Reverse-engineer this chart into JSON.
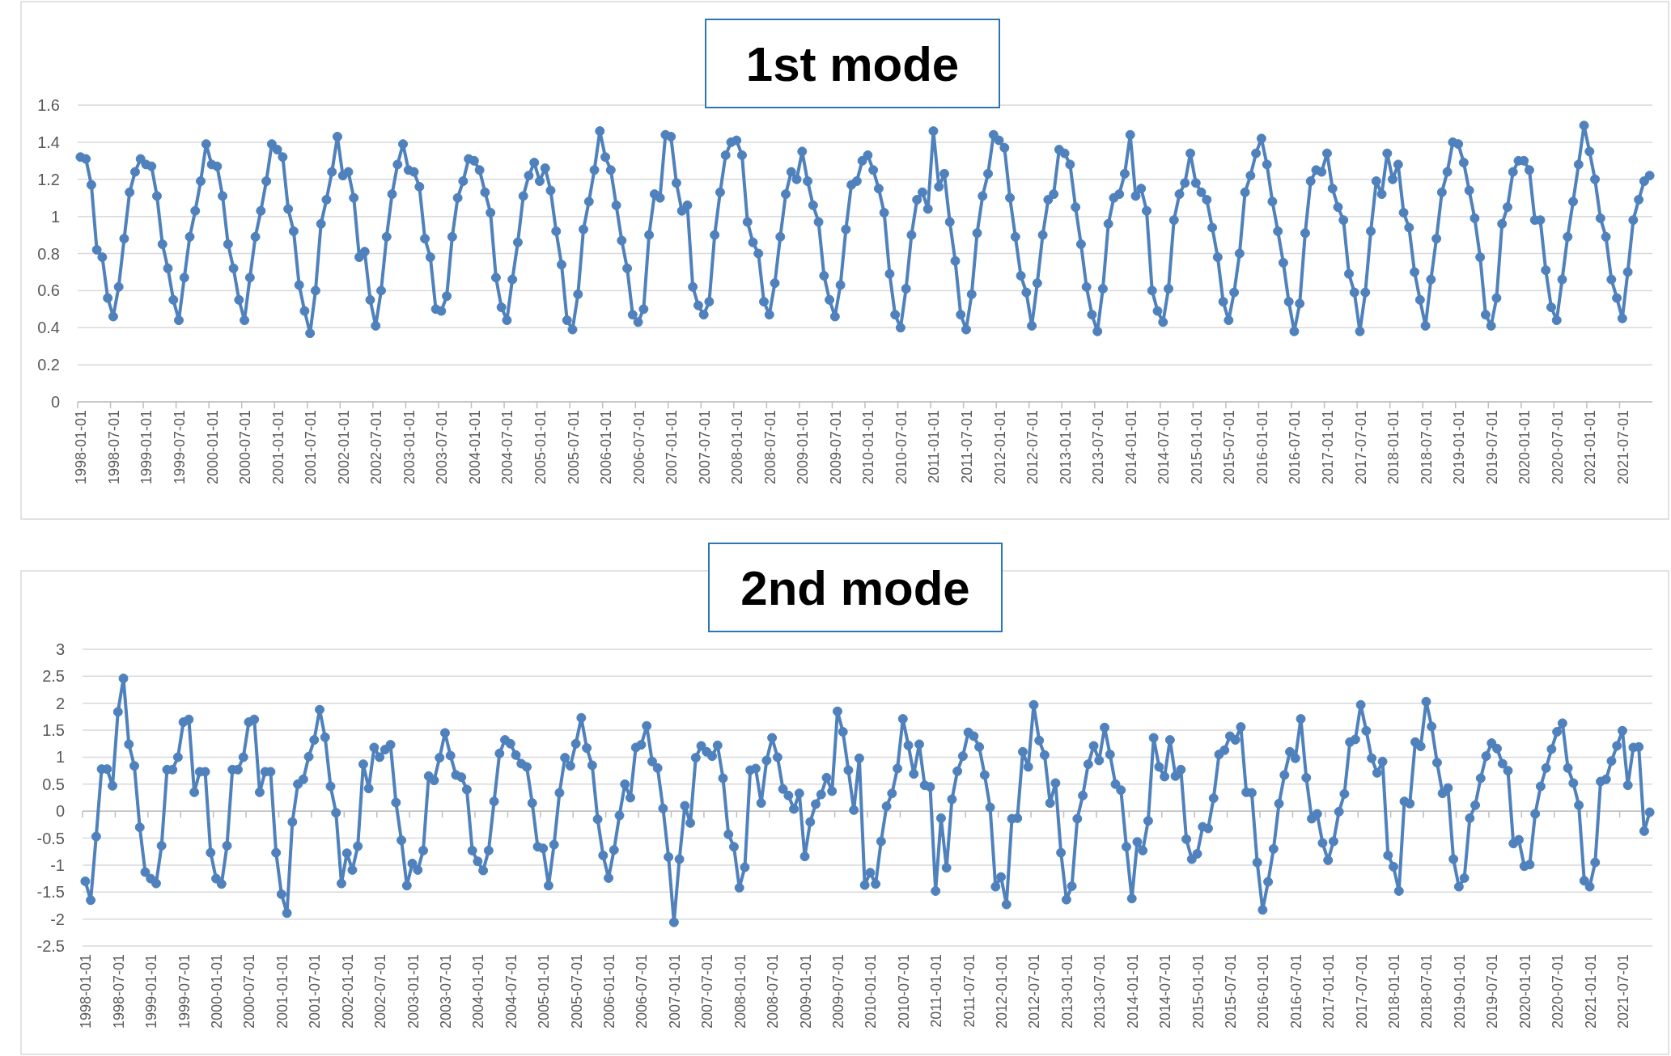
{
  "chart_data": [
    {
      "type": "line",
      "title": "1st mode",
      "grid": "y",
      "marker": "circle",
      "ylim": [
        0,
        1.6
      ],
      "yticks": [
        0,
        0.2,
        0.4,
        0.6,
        0.8,
        1,
        1.2,
        1.4,
        1.6
      ],
      "categories": [
        "1998-01-01",
        null,
        null,
        null,
        null,
        null,
        "1998-07-01",
        null,
        null,
        null,
        null,
        null,
        "1999-01-01",
        null,
        null,
        null,
        null,
        null,
        "1999-07-01",
        null,
        null,
        null,
        null,
        null,
        "2000-01-01",
        null,
        null,
        null,
        null,
        null,
        "2000-07-01",
        null,
        null,
        null,
        null,
        null,
        "2001-01-01",
        null,
        null,
        null,
        null,
        null,
        "2001-07-01",
        null,
        null,
        null,
        null,
        null,
        "2002-01-01",
        null,
        null,
        null,
        null,
        null,
        "2002-07-01",
        null,
        null,
        null,
        null,
        null,
        "2003-01-01",
        null,
        null,
        null,
        null,
        null,
        "2003-07-01",
        null,
        null,
        null,
        null,
        null,
        "2004-01-01",
        null,
        null,
        null,
        null,
        null,
        "2004-07-01",
        null,
        null,
        null,
        null,
        null,
        "2005-01-01",
        null,
        null,
        null,
        null,
        null,
        "2005-07-01",
        null,
        null,
        null,
        null,
        null,
        "2006-01-01",
        null,
        null,
        null,
        null,
        null,
        "2006-07-01",
        null,
        null,
        null,
        null,
        null,
        "2007-01-01",
        null,
        null,
        null,
        null,
        null,
        "2007-07-01",
        null,
        null,
        null,
        null,
        null,
        "2008-01-01",
        null,
        null,
        null,
        null,
        null,
        "2008-07-01",
        null,
        null,
        null,
        null,
        null,
        "2009-01-01",
        null,
        null,
        null,
        null,
        null,
        "2009-07-01",
        null,
        null,
        null,
        null,
        null,
        "2010-01-01",
        null,
        null,
        null,
        null,
        null,
        "2010-07-01",
        null,
        null,
        null,
        null,
        null,
        "2011-01-01",
        null,
        null,
        null,
        null,
        null,
        "2011-07-01",
        null,
        null,
        null,
        null,
        null,
        "2012-01-01",
        null,
        null,
        null,
        null,
        null,
        "2012-07-01",
        null,
        null,
        null,
        null,
        null,
        "2013-01-01",
        null,
        null,
        null,
        null,
        null,
        "2013-07-01",
        null,
        null,
        null,
        null,
        null,
        "2014-01-01",
        null,
        null,
        null,
        null,
        null,
        "2014-07-01",
        null,
        null,
        null,
        null,
        null,
        "2015-01-01",
        null,
        null,
        null,
        null,
        null,
        "2015-07-01",
        null,
        null,
        null,
        null,
        null,
        "2016-01-01",
        null,
        null,
        null,
        null,
        null,
        "2016-07-01",
        null,
        null,
        null,
        null,
        null,
        "2017-01-01",
        null,
        null,
        null,
        null,
        null,
        "2017-07-01",
        null,
        null,
        null,
        null,
        null,
        "2018-01-01",
        null,
        null,
        null,
        null,
        null,
        "2018-07-01",
        null,
        null,
        null,
        null,
        null,
        "2019-01-01",
        null,
        null,
        null,
        null,
        null,
        "2019-07-01",
        null,
        null,
        null,
        null,
        null,
        "2020-01-01",
        null,
        null,
        null,
        null,
        null,
        "2020-07-01",
        null,
        null,
        null,
        null,
        null,
        "2021-01-01",
        null,
        null,
        null,
        null,
        null,
        "2021-07-01",
        null,
        null,
        null,
        null,
        null
      ],
      "series": [
        {
          "color": "#4f81bd",
          "values": [
            1.32,
            1.31,
            1.17,
            0.82,
            0.78,
            0.56,
            0.46,
            0.62,
            0.88,
            1.13,
            1.24,
            1.31,
            1.28,
            1.27,
            1.11,
            0.85,
            0.72,
            0.55,
            0.44,
            0.67,
            0.89,
            1.03,
            1.19,
            1.39,
            1.28,
            1.27,
            1.11,
            0.85,
            0.72,
            0.55,
            0.44,
            0.67,
            0.89,
            1.03,
            1.19,
            1.39,
            1.36,
            1.32,
            1.04,
            0.92,
            0.63,
            0.49,
            0.37,
            0.6,
            0.96,
            1.09,
            1.24,
            1.43,
            1.22,
            1.24,
            1.1,
            0.78,
            0.81,
            0.55,
            0.41,
            0.6,
            0.89,
            1.12,
            1.28,
            1.39,
            1.25,
            1.24,
            1.16,
            0.88,
            0.78,
            0.5,
            0.49,
            0.57,
            0.89,
            1.1,
            1.19,
            1.31,
            1.3,
            1.25,
            1.13,
            1.02,
            0.67,
            0.51,
            0.44,
            0.66,
            0.86,
            1.11,
            1.22,
            1.29,
            1.19,
            1.26,
            1.14,
            0.92,
            0.74,
            0.44,
            0.39,
            0.58,
            0.93,
            1.08,
            1.25,
            1.46,
            1.32,
            1.25,
            1.06,
            0.87,
            0.72,
            0.47,
            0.43,
            0.5,
            0.9,
            1.12,
            1.1,
            1.44,
            1.43,
            1.18,
            1.03,
            1.06,
            0.62,
            0.52,
            0.47,
            0.54,
            0.9,
            1.13,
            1.33,
            1.4,
            1.41,
            1.33,
            0.97,
            0.86,
            0.8,
            0.54,
            0.47,
            0.64,
            0.89,
            1.12,
            1.24,
            1.2,
            1.35,
            1.19,
            1.06,
            0.97,
            0.68,
            0.55,
            0.46,
            0.63,
            0.93,
            1.17,
            1.19,
            1.3,
            1.33,
            1.25,
            1.15,
            1.02,
            0.69,
            0.47,
            0.4,
            0.61,
            0.9,
            1.09,
            1.13,
            1.04,
            1.46,
            1.16,
            1.23,
            0.97,
            0.76,
            0.47,
            0.39,
            0.58,
            0.91,
            1.11,
            1.23,
            1.44,
            1.41,
            1.37,
            1.1,
            0.89,
            0.68,
            0.59,
            0.41,
            0.64,
            0.9,
            1.09,
            1.12,
            1.36,
            1.34,
            1.28,
            1.05,
            0.85,
            0.62,
            0.47,
            0.38,
            0.61,
            0.96,
            1.1,
            1.12,
            1.23,
            1.44,
            1.11,
            1.15,
            1.03,
            0.6,
            0.49,
            0.43,
            0.61,
            0.98,
            1.12,
            1.18,
            1.34,
            1.18,
            1.13,
            1.09,
            0.94,
            0.78,
            0.54,
            0.44,
            0.59,
            0.8,
            1.13,
            1.22,
            1.34,
            1.42,
            1.28,
            1.08,
            0.92,
            0.75,
            0.54,
            0.38,
            0.53,
            0.91,
            1.19,
            1.25,
            1.24,
            1.34,
            1.15,
            1.05,
            0.98,
            0.69,
            0.59,
            0.38,
            0.59,
            0.92,
            1.19,
            1.12,
            1.34,
            1.2,
            1.28,
            1.02,
            0.94,
            0.7,
            0.55,
            0.41,
            0.66,
            0.88,
            1.13,
            1.24,
            1.4,
            1.39,
            1.29,
            1.14,
            0.99,
            0.78,
            0.47,
            0.41,
            0.56,
            0.96,
            1.05,
            1.24,
            1.3,
            1.3,
            1.25,
            0.98,
            0.98,
            0.71,
            0.51,
            0.44,
            0.66,
            0.89,
            1.08,
            1.28,
            1.49,
            1.35,
            1.2,
            0.99,
            0.89,
            0.66,
            0.56,
            0.45,
            0.7,
            0.98,
            1.09,
            1.19,
            1.22
          ]
        }
      ]
    },
    {
      "type": "line",
      "title": "2nd mode",
      "grid": "y",
      "marker": "circle",
      "ylim": [
        -2.5,
        3
      ],
      "yticks": [
        -2.5,
        -2,
        -1.5,
        -1,
        -0.5,
        0,
        0.5,
        1,
        1.5,
        2,
        2.5,
        3
      ],
      "categories": [
        "1998-01-01",
        null,
        null,
        null,
        null,
        null,
        "1998-07-01",
        null,
        null,
        null,
        null,
        null,
        "1999-01-01",
        null,
        null,
        null,
        null,
        null,
        "1999-07-01",
        null,
        null,
        null,
        null,
        null,
        "2000-01-01",
        null,
        null,
        null,
        null,
        null,
        "2000-07-01",
        null,
        null,
        null,
        null,
        null,
        "2001-01-01",
        null,
        null,
        null,
        null,
        null,
        "2001-07-01",
        null,
        null,
        null,
        null,
        null,
        "2002-01-01",
        null,
        null,
        null,
        null,
        null,
        "2002-07-01",
        null,
        null,
        null,
        null,
        null,
        "2003-01-01",
        null,
        null,
        null,
        null,
        null,
        "2003-07-01",
        null,
        null,
        null,
        null,
        null,
        "2004-01-01",
        null,
        null,
        null,
        null,
        null,
        "2004-07-01",
        null,
        null,
        null,
        null,
        null,
        "2005-01-01",
        null,
        null,
        null,
        null,
        null,
        "2005-07-01",
        null,
        null,
        null,
        null,
        null,
        "2006-01-01",
        null,
        null,
        null,
        null,
        null,
        "2006-07-01",
        null,
        null,
        null,
        null,
        null,
        "2007-01-01",
        null,
        null,
        null,
        null,
        null,
        "2007-07-01",
        null,
        null,
        null,
        null,
        null,
        "2008-01-01",
        null,
        null,
        null,
        null,
        null,
        "2008-07-01",
        null,
        null,
        null,
        null,
        null,
        "2009-01-01",
        null,
        null,
        null,
        null,
        null,
        "2009-07-01",
        null,
        null,
        null,
        null,
        null,
        "2010-01-01",
        null,
        null,
        null,
        null,
        null,
        "2010-07-01",
        null,
        null,
        null,
        null,
        null,
        "2011-01-01",
        null,
        null,
        null,
        null,
        null,
        "2011-07-01",
        null,
        null,
        null,
        null,
        null,
        "2012-01-01",
        null,
        null,
        null,
        null,
        null,
        "2012-07-01",
        null,
        null,
        null,
        null,
        null,
        "2013-01-01",
        null,
        null,
        null,
        null,
        null,
        "2013-07-01",
        null,
        null,
        null,
        null,
        null,
        "2014-01-01",
        null,
        null,
        null,
        null,
        null,
        "2014-07-01",
        null,
        null,
        null,
        null,
        null,
        "2015-01-01",
        null,
        null,
        null,
        null,
        null,
        "2015-07-01",
        null,
        null,
        null,
        null,
        null,
        "2016-01-01",
        null,
        null,
        null,
        null,
        null,
        "2016-07-01",
        null,
        null,
        null,
        null,
        null,
        "2017-01-01",
        null,
        null,
        null,
        null,
        null,
        "2017-07-01",
        null,
        null,
        null,
        null,
        null,
        "2018-01-01",
        null,
        null,
        null,
        null,
        null,
        "2018-07-01",
        null,
        null,
        null,
        null,
        null,
        "2019-01-01",
        null,
        null,
        null,
        null,
        null,
        "2019-07-01",
        null,
        null,
        null,
        null,
        null,
        "2020-01-01",
        null,
        null,
        null,
        null,
        null,
        "2020-07-01",
        null,
        null,
        null,
        null,
        null,
        "2021-01-01",
        null,
        null,
        null,
        null,
        null,
        "2021-07-01",
        null,
        null,
        null,
        null,
        null
      ],
      "series": [
        {
          "color": "#4f81bd",
          "values": [
            -1.3,
            -1.65,
            -0.47,
            0.78,
            0.78,
            0.47,
            1.84,
            2.46,
            1.24,
            0.84,
            -0.3,
            -1.13,
            -1.25,
            -1.34,
            -0.64,
            0.77,
            0.77,
            1.0,
            1.65,
            1.7,
            0.35,
            0.73,
            0.73,
            -0.77,
            -1.25,
            -1.35,
            -0.64,
            0.77,
            0.77,
            1.0,
            1.65,
            1.7,
            0.35,
            0.73,
            0.73,
            -0.77,
            -1.54,
            -1.89,
            -0.2,
            0.5,
            0.59,
            1.01,
            1.32,
            1.88,
            1.37,
            0.46,
            -0.03,
            -1.34,
            -0.78,
            -1.09,
            -0.65,
            0.87,
            0.42,
            1.18,
            1.0,
            1.14,
            1.23,
            0.16,
            -0.54,
            -1.38,
            -0.97,
            -1.09,
            -0.73,
            0.65,
            0.57,
            0.99,
            1.45,
            1.03,
            0.67,
            0.63,
            0.4,
            -0.73,
            -0.93,
            -1.1,
            -0.73,
            0.18,
            1.07,
            1.32,
            1.25,
            1.04,
            0.88,
            0.82,
            0.15,
            -0.66,
            -0.69,
            -1.38,
            -0.62,
            0.34,
            0.99,
            0.84,
            1.25,
            1.73,
            1.17,
            0.85,
            -0.15,
            -0.82,
            -1.24,
            -0.72,
            -0.08,
            0.5,
            0.25,
            1.18,
            1.23,
            1.58,
            0.92,
            0.8,
            0.05,
            -0.85,
            -2.06,
            -0.89,
            0.1,
            -0.22,
            0.99,
            1.21,
            1.1,
            1.02,
            1.22,
            0.61,
            -0.43,
            -0.66,
            -1.42,
            -1.04,
            0.76,
            0.79,
            0.15,
            0.94,
            1.36,
            1.0,
            0.41,
            0.29,
            0.04,
            0.33,
            -0.84,
            -0.2,
            0.13,
            0.31,
            0.62,
            0.37,
            1.85,
            1.47,
            0.76,
            0.02,
            0.98,
            -1.37,
            -1.14,
            -1.35,
            -0.56,
            0.09,
            0.33,
            0.79,
            1.71,
            1.22,
            0.69,
            1.24,
            0.48,
            0.45,
            -1.48,
            -0.13,
            -1.05,
            0.22,
            0.74,
            1.02,
            1.46,
            1.39,
            1.19,
            0.67,
            0.07,
            -1.4,
            -1.22,
            -1.73,
            -0.14,
            -0.13,
            1.1,
            0.82,
            1.97,
            1.31,
            1.04,
            0.15,
            0.52,
            -0.77,
            -1.64,
            -1.39,
            -0.14,
            0.29,
            0.87,
            1.21,
            0.94,
            1.55,
            1.05,
            0.5,
            0.39,
            -0.66,
            -1.62,
            -0.57,
            -0.73,
            -0.18,
            1.36,
            0.82,
            0.64,
            1.32,
            0.65,
            0.77,
            -0.52,
            -0.89,
            -0.79,
            -0.29,
            -0.32,
            0.24,
            1.05,
            1.13,
            1.39,
            1.32,
            1.56,
            0.35,
            0.34,
            -0.95,
            -1.83,
            -1.31,
            -0.7,
            0.14,
            0.67,
            1.1,
            0.98,
            1.71,
            0.62,
            -0.14,
            -0.05,
            -0.59,
            -0.91,
            -0.56,
            -0.01,
            0.32,
            1.28,
            1.33,
            1.97,
            1.49,
            0.98,
            0.71,
            0.92,
            -0.82,
            -1.03,
            -1.48,
            0.18,
            0.14,
            1.28,
            1.2,
            2.03,
            1.57,
            0.9,
            0.33,
            0.43,
            -0.89,
            -1.4,
            -1.24,
            -0.13,
            0.11,
            0.61,
            1.02,
            1.26,
            1.16,
            0.88,
            0.75,
            -0.6,
            -0.53,
            -1.02,
            -0.99,
            -0.05,
            0.46,
            0.8,
            1.15,
            1.47,
            1.63,
            0.8,
            0.52,
            0.11,
            -1.29,
            -1.4,
            -0.95,
            0.55,
            0.59,
            0.93,
            1.21,
            1.49,
            0.48,
            1.18,
            1.19,
            -0.37,
            -0.02
          ]
        }
      ]
    }
  ]
}
